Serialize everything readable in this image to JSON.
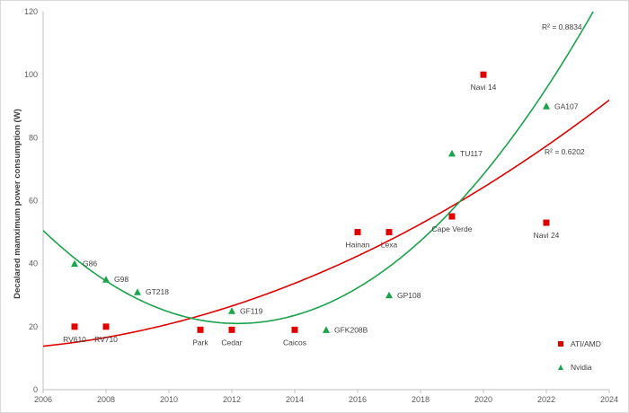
{
  "chart_data": {
    "type": "scatter",
    "ylabel": "Decalared mamximum power consumption (W)",
    "xlim": [
      2006,
      2024
    ],
    "ylim": [
      0,
      120
    ],
    "x_ticks": [
      2006,
      2008,
      2010,
      2012,
      2014,
      2016,
      2018,
      2020,
      2022,
      2024
    ],
    "y_ticks": [
      0,
      20,
      40,
      60,
      80,
      100,
      120
    ],
    "grid": false,
    "legend_position": "bottom-right",
    "series": [
      {
        "name": "ATI/AMD",
        "marker": "square",
        "color": "#e00000",
        "points": [
          {
            "x": 2007,
            "y": 20,
            "label": "RV610"
          },
          {
            "x": 2008,
            "y": 20,
            "label": "RV710"
          },
          {
            "x": 2011,
            "y": 19,
            "label": "Park"
          },
          {
            "x": 2012,
            "y": 19,
            "label": "Cedar"
          },
          {
            "x": 2014,
            "y": 19,
            "label": "Caicos"
          },
          {
            "x": 2016,
            "y": 50,
            "label": "Hainan"
          },
          {
            "x": 2017,
            "y": 50,
            "label": "Lexa"
          },
          {
            "x": 2019,
            "y": 55,
            "label": "Cape Verde"
          },
          {
            "x": 2020,
            "y": 100,
            "label": "Navi 14"
          },
          {
            "x": 2022,
            "y": 53,
            "label": "Navi 24"
          }
        ],
        "trendline": {
          "type": "polynomial",
          "r2_label": "R² = 0.6202",
          "color": "#e00000"
        }
      },
      {
        "name": "Nvidia",
        "marker": "triangle",
        "color": "#1aa34a",
        "points": [
          {
            "x": 2007,
            "y": 40,
            "label": "G86"
          },
          {
            "x": 2008,
            "y": 35,
            "label": "G98"
          },
          {
            "x": 2009,
            "y": 31,
            "label": "GT218"
          },
          {
            "x": 2012,
            "y": 25,
            "label": "GF119"
          },
          {
            "x": 2015,
            "y": 19,
            "label": "GFK208B"
          },
          {
            "x": 2017,
            "y": 30,
            "label": "GP108"
          },
          {
            "x": 2019,
            "y": 75,
            "label": "TU117"
          },
          {
            "x": 2022,
            "y": 90,
            "label": "GA107"
          }
        ],
        "trendline": {
          "type": "polynomial",
          "r2_label": "R² = 0.8834",
          "color": "#1aa34a"
        }
      }
    ]
  }
}
